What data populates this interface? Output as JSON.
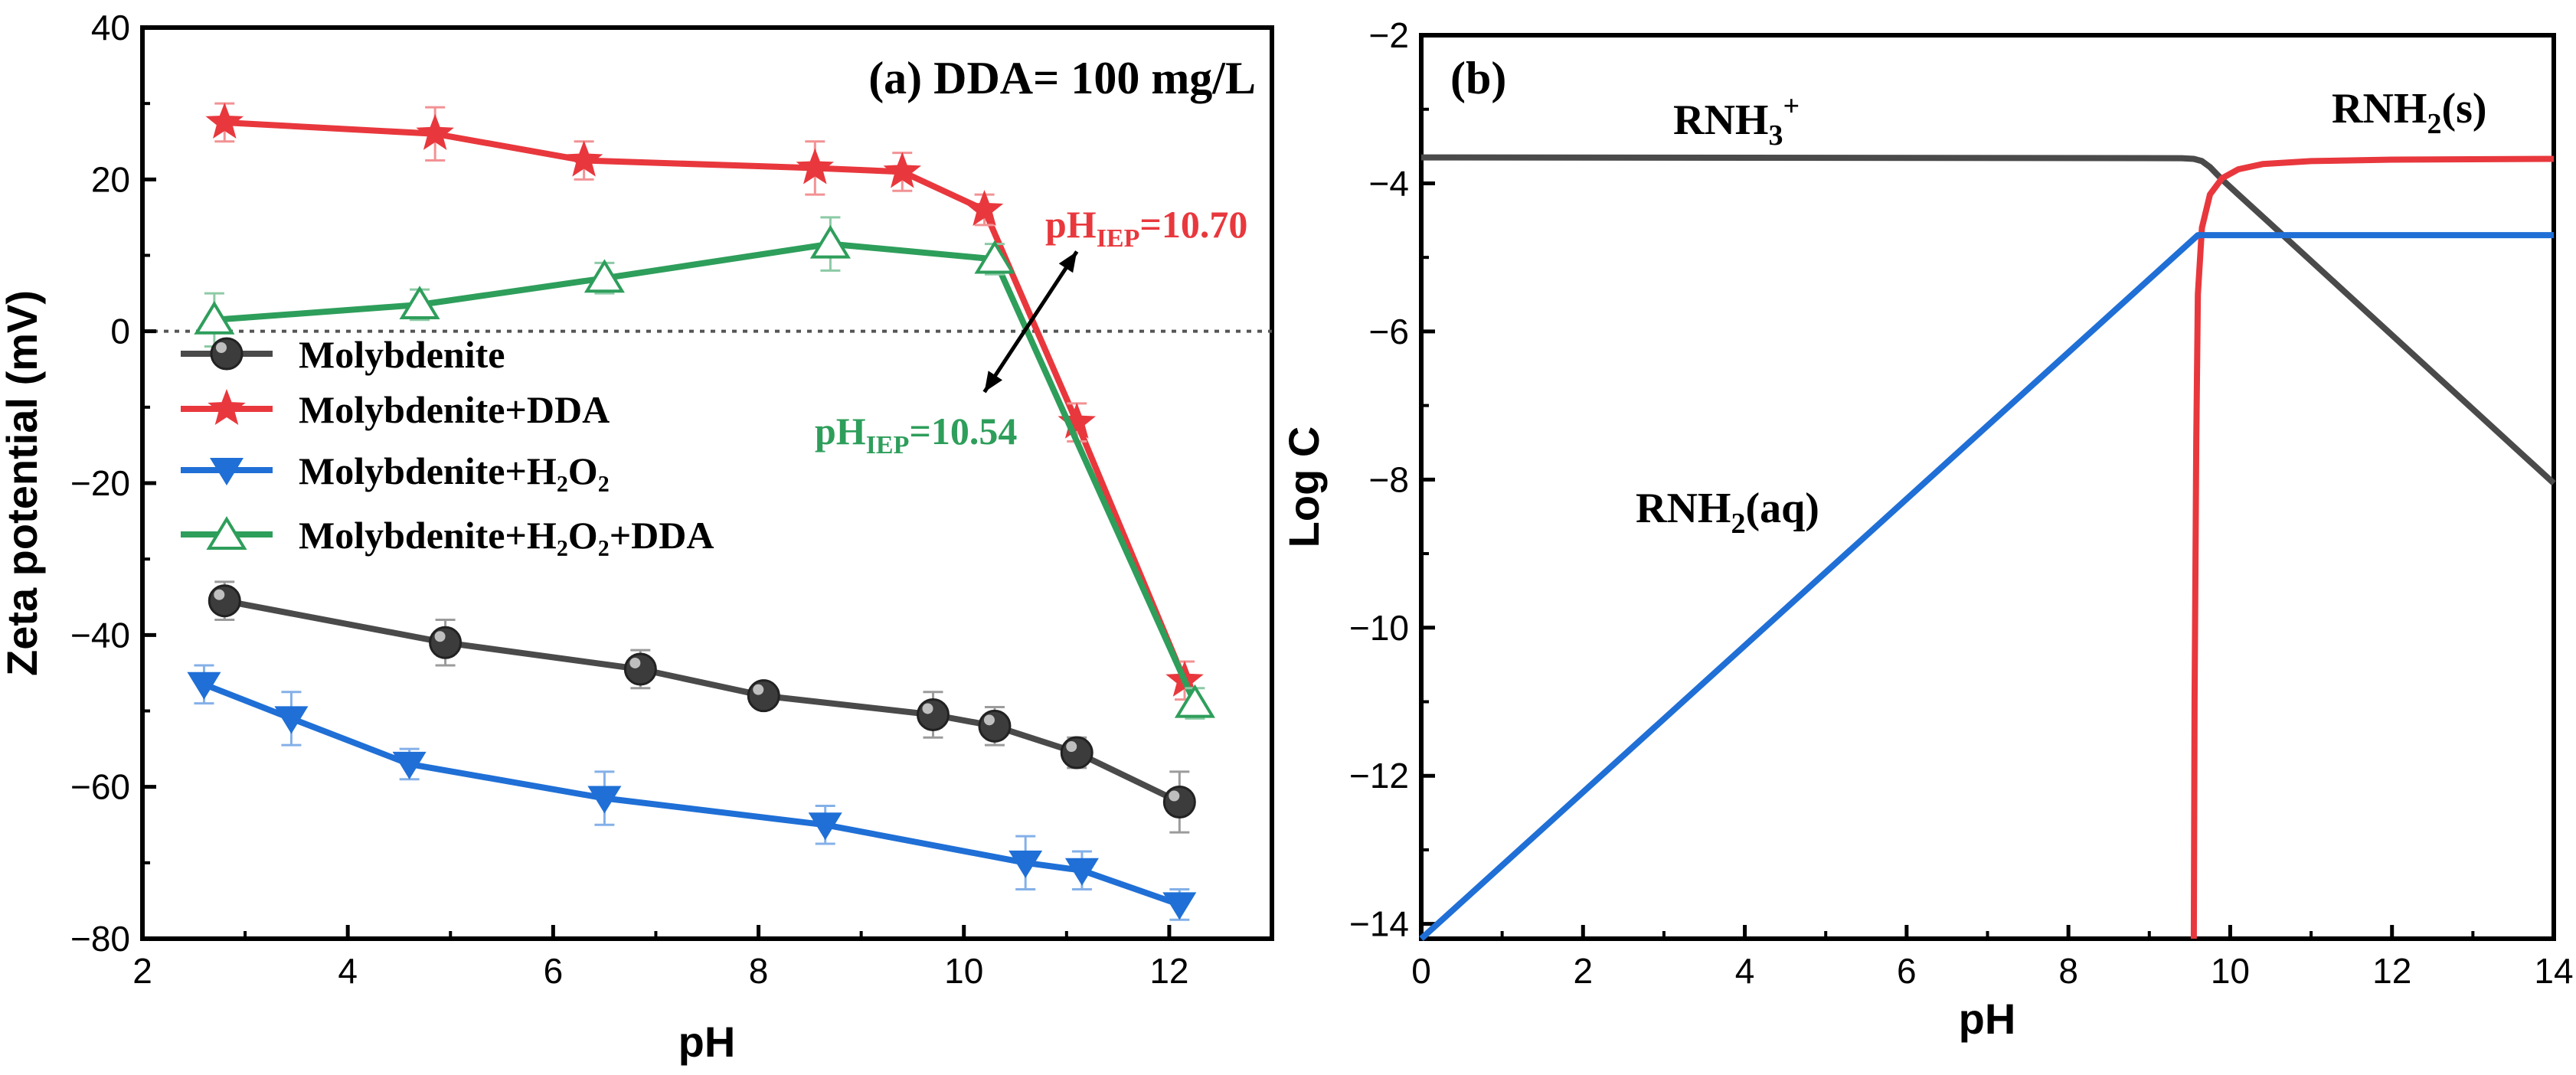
{
  "chart_data": [
    {
      "type": "line",
      "panel_label": "(a) DDA= 100 mg/L",
      "xlabel": "pH",
      "ylabel": "Zeta potential (mV)",
      "xlim": [
        2,
        13
      ],
      "ylim": [
        -80,
        40
      ],
      "xticks": [
        2,
        4,
        6,
        8,
        10,
        12
      ],
      "yticks": [
        -80,
        -60,
        -40,
        -20,
        0,
        20,
        40
      ],
      "xtick_labels": [
        "2",
        "4",
        "6",
        "8",
        "10",
        "12"
      ],
      "ytick_labels": [
        "−80",
        "−60",
        "−40",
        "−20",
        "0",
        "20",
        "40"
      ],
      "zero_line": true,
      "series": [
        {
          "name": "Molybdenite",
          "legend_label": "Molybdenite",
          "color": "#4a4a4a",
          "marker": "sphere",
          "x": [
            2.8,
            4.95,
            6.85,
            8.05,
            9.7,
            10.3,
            11.1,
            12.1
          ],
          "y": [
            -35.5,
            -41,
            -44.5,
            -48,
            -50.5,
            -52,
            -55.5,
            -62
          ],
          "err": [
            2.5,
            3,
            2.5,
            1.5,
            3,
            2.5,
            2,
            4
          ]
        },
        {
          "name": "Molybdenite+DDA",
          "legend_label": "Molybdenite+DDA",
          "color": "#e8383d",
          "marker": "star",
          "x": [
            2.8,
            4.85,
            6.3,
            8.55,
            9.4,
            10.2,
            11.1,
            12.15
          ],
          "y": [
            27.5,
            26,
            22.5,
            21.5,
            21,
            16,
            -12,
            -46
          ],
          "err": [
            2.5,
            3.5,
            2.5,
            3.5,
            2.5,
            2,
            2.5,
            2.5
          ]
        },
        {
          "name": "Molybdenite+H2O2",
          "legend_label": "Molybdenite+H₂O₂",
          "color": "#1f6fd6",
          "marker": "triangle-down",
          "x": [
            2.6,
            3.45,
            4.6,
            6.5,
            8.65,
            10.6,
            11.15,
            12.1
          ],
          "y": [
            -46.5,
            -51,
            -57,
            -61.5,
            -65,
            -70,
            -71,
            -75.5
          ],
          "err": [
            2.5,
            3.5,
            2,
            3.5,
            2.5,
            3.5,
            2.5,
            2
          ]
        },
        {
          "name": "Molybdenite+H2O2+DDA",
          "legend_label": "Molybdenite+H₂O₂+DDA",
          "color": "#2e9e5b",
          "marker": "triangle-up",
          "x": [
            2.7,
            4.7,
            6.5,
            8.7,
            10.3,
            12.25
          ],
          "y": [
            1.5,
            3.5,
            7,
            11.5,
            9.5,
            -49
          ],
          "err": [
            3.5,
            2,
            2,
            3.5,
            2,
            2
          ]
        }
      ],
      "annotations": [
        {
          "main": "pH",
          "sub": "IEP",
          "rest": "=10.70",
          "color": "#e8383d"
        },
        {
          "main": "pH",
          "sub": "IEP",
          "rest": "=10.54",
          "color": "#2e9e5b"
        }
      ],
      "arrow": {
        "from": [
          10.2,
          -8
        ],
        "to": [
          11.1,
          10.5
        ]
      }
    },
    {
      "type": "line",
      "panel_label": "(b)",
      "xlabel": "pH",
      "ylabel": "Log C",
      "xlim": [
        0,
        14
      ],
      "ylim": [
        -14.2,
        -2
      ],
      "xticks": [
        0,
        2,
        4,
        6,
        8,
        10,
        12,
        14
      ],
      "yticks": [
        -14,
        -12,
        -10,
        -8,
        -6,
        -4,
        -2
      ],
      "xtick_labels": [
        "0",
        "2",
        "4",
        "6",
        "8",
        "10",
        "12",
        "14"
      ],
      "ytick_labels": [
        "−14",
        "−12",
        "−10",
        "−8",
        "−6",
        "−4",
        "−2"
      ],
      "series": [
        {
          "name": "RNH3+",
          "color": "#4a4a4a",
          "x": [
            0,
            9.4,
            9.55,
            9.65,
            9.75,
            9.9,
            10.1,
            10.5,
            14
          ],
          "y": [
            -3.65,
            -3.66,
            -3.67,
            -3.7,
            -3.78,
            -3.95,
            -4.15,
            -4.55,
            -8.05
          ]
        },
        {
          "name": "RNH2(s)",
          "color": "#e8383d",
          "x": [
            9.55,
            9.56,
            9.58,
            9.6,
            9.65,
            9.75,
            9.9,
            10.1,
            10.4,
            11,
            12,
            14
          ],
          "y": [
            -14.2,
            -11,
            -7.5,
            -5.5,
            -4.6,
            -4.15,
            -3.93,
            -3.81,
            -3.74,
            -3.7,
            -3.68,
            -3.67
          ]
        },
        {
          "name": "RNH2(aq)",
          "color": "#1f6fd6",
          "x": [
            0,
            9.6,
            14
          ],
          "y": [
            -14.2,
            -4.7,
            -4.7
          ]
        }
      ],
      "labels": [
        {
          "main": "RNH",
          "sub": "3",
          "sup": "+",
          "rest": ""
        },
        {
          "main": "RNH",
          "sub": "2",
          "rest": "(s)"
        },
        {
          "main": "RNH",
          "sub": "2",
          "rest": "(aq)"
        }
      ]
    }
  ]
}
